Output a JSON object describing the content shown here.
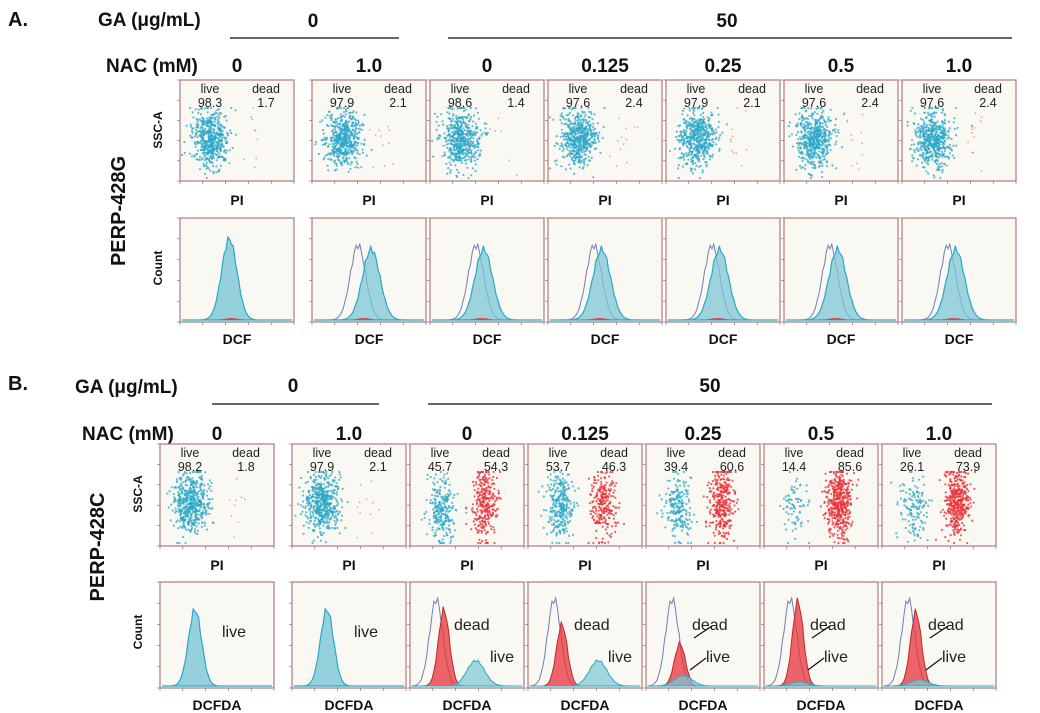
{
  "panels": [
    {
      "letter": "A.",
      "ga_label": "GA (μg/mL)",
      "ga_groups": [
        "0",
        "50"
      ],
      "nac_label": "NAC (mM)",
      "nac_values": [
        "0",
        "1.0",
        "0",
        "0.125",
        "0.25",
        "0.5",
        "1.0"
      ],
      "cell_line": "PERP-428G",
      "scatter_ylabel": "SSC-A",
      "scatter_xlabel": "PI",
      "hist_ylabel": "Count",
      "hist_xlabel": "DCF",
      "live_word": "live",
      "dead_word": "dead",
      "live_pct": [
        "98.3",
        "97.9",
        "98.6",
        "97.6",
        "97.9",
        "97.6",
        "97.6"
      ],
      "dead_pct": [
        "1.7",
        "2.1",
        "1.4",
        "2.4",
        "2.1",
        "2.4",
        "2.4"
      ]
    },
    {
      "letter": "B.",
      "ga_label": "GA (μg/mL)",
      "ga_groups": [
        "0",
        "50"
      ],
      "nac_label": "NAC (mM)",
      "nac_values": [
        "0",
        "1.0",
        "0",
        "0.125",
        "0.25",
        "0.5",
        "1.0"
      ],
      "cell_line": "PERP-428C",
      "scatter_ylabel": "SSC-A",
      "scatter_xlabel": "PI",
      "hist_ylabel": "Count",
      "hist_xlabel": "DCFDA",
      "live_word": "live",
      "dead_word": "dead",
      "live_pct": [
        "98.2",
        "97.9",
        "45.7",
        "53.7",
        "39.4",
        "14.4",
        "26.1"
      ],
      "dead_pct": [
        "1.8",
        "2.1",
        "54.3",
        "46.3",
        "60.6",
        "85.6",
        "73.9"
      ],
      "hist_labels": [
        [
          "live"
        ],
        [
          "live"
        ],
        [
          "dead",
          "live"
        ],
        [
          "dead",
          "live"
        ],
        [
          "dead",
          "live"
        ],
        [
          "dead",
          "live"
        ],
        [
          "dead",
          "live"
        ]
      ]
    }
  ],
  "colors": {
    "live": "#2aa7c9",
    "live_fill": "#7cc7d6",
    "dead": "#e8333a",
    "frame": "#b07a7a",
    "plot_bg": "#faf8f2"
  }
}
